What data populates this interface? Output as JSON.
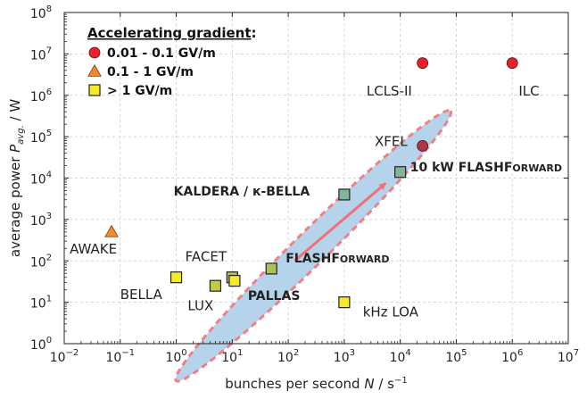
{
  "chart_data": {
    "type": "scatter",
    "x_scale": "log",
    "y_scale": "log",
    "xlim": [
      0.01,
      10000000
    ],
    "ylim": [
      1,
      100000000
    ],
    "grid": true,
    "xlabel_main": "bunches per second ",
    "xlabel_var": "N",
    "xlabel_unit": " / s",
    "xlabel_unit_sup": "−1",
    "ylabel_main": "average power ",
    "ylabel_var": "P",
    "ylabel_sub": "avg.",
    "ylabel_unit": " / W",
    "x_ticks": [
      {
        "value": 0.01,
        "base": "10",
        "exp": "−2"
      },
      {
        "value": 0.1,
        "base": "10",
        "exp": "−1"
      },
      {
        "value": 1,
        "base": "10",
        "exp": "0"
      },
      {
        "value": 10,
        "base": "10",
        "exp": "1"
      },
      {
        "value": 100,
        "base": "10",
        "exp": "2"
      },
      {
        "value": 1000,
        "base": "10",
        "exp": "3"
      },
      {
        "value": 10000,
        "base": "10",
        "exp": "4"
      },
      {
        "value": 100000,
        "base": "10",
        "exp": "5"
      },
      {
        "value": 1000000,
        "base": "10",
        "exp": "6"
      },
      {
        "value": 10000000,
        "base": "10",
        "exp": "7"
      }
    ],
    "y_ticks": [
      {
        "value": 1,
        "base": "10",
        "exp": "0"
      },
      {
        "value": 10,
        "base": "10",
        "exp": "1"
      },
      {
        "value": 100,
        "base": "10",
        "exp": "2"
      },
      {
        "value": 1000,
        "base": "10",
        "exp": "3"
      },
      {
        "value": 10000,
        "base": "10",
        "exp": "4"
      },
      {
        "value": 100000,
        "base": "10",
        "exp": "5"
      },
      {
        "value": 1000000,
        "base": "10",
        "exp": "6"
      },
      {
        "value": 10000000,
        "base": "10",
        "exp": "7"
      },
      {
        "value": 100000000,
        "base": "10",
        "exp": "8"
      }
    ],
    "legend": {
      "placement": "top-left",
      "title": "Accelerating gradient",
      "title_suffix": ":",
      "entries": [
        {
          "label": "0.01 - 0.1 GV/m",
          "marker": "circle",
          "color": "#e8202a"
        },
        {
          "label": "0.1 - 1 GV/m",
          "marker": "triangle",
          "color": "#f08a30"
        },
        {
          "label": "> 1 GV/m",
          "marker": "square",
          "color": "#f7ea2a"
        }
      ]
    },
    "points": [
      {
        "label": "LCLS-II",
        "x": 25000,
        "y": 6000000,
        "marker": "circle",
        "color": "#e8202a"
      },
      {
        "label": "ILC",
        "x": 1000000,
        "y": 6000000,
        "marker": "circle",
        "color": "#e8202a"
      },
      {
        "label": "XFEL",
        "x": 25000,
        "y": 60000,
        "marker": "circle",
        "color": "#a83a48"
      },
      {
        "label": "AWAKE",
        "x": 0.07,
        "y": 500,
        "marker": "triangle",
        "color": "#f08a30"
      },
      {
        "label": "BELLA",
        "x": 1,
        "y": 40,
        "marker": "square",
        "color": "#f7ea2a"
      },
      {
        "label": "FACET",
        "x": 10,
        "y": 40,
        "marker": "square",
        "color": "#b9c24a"
      },
      {
        "label": "LUX",
        "x": 5,
        "y": 25,
        "marker": "square",
        "color": "#c3cb44"
      },
      {
        "label": "PALLAS",
        "x": 11,
        "y": 33,
        "marker": "square",
        "color": "#f7ea2a"
      },
      {
        "label": "FLASHForward",
        "x": 50,
        "y": 65,
        "marker": "square",
        "color": "#a8c25c"
      },
      {
        "label": "kHz LOA",
        "x": 1000,
        "y": 10,
        "marker": "square",
        "color": "#f7ea2a"
      },
      {
        "label": "KALDERA / к-BELLA",
        "x": 1000,
        "y": 4000,
        "marker": "square",
        "color": "#82b49a"
      },
      {
        "label": "10 kW FLASHForward",
        "x": 10000,
        "y": 14000,
        "marker": "square",
        "color": "#82b49a"
      }
    ],
    "annotations": [
      {
        "id": "lcls",
        "text": "LCLS-II",
        "x": 2500,
        "y": 1000000
      },
      {
        "id": "ilc",
        "text": "ILC",
        "x": 1300000,
        "y": 1000000
      },
      {
        "id": "xfel",
        "text": "XFEL",
        "x": 3500,
        "y": 60000
      },
      {
        "id": "awake",
        "text": "AWAKE",
        "x": 0.0125,
        "y": 150
      },
      {
        "id": "bella",
        "text": "BELLA",
        "x": 0.1,
        "y": 12
      },
      {
        "id": "facet",
        "text": "FACET",
        "x": 1.45,
        "y": 100
      },
      {
        "id": "lux",
        "text": "LUX",
        "x": 1.6,
        "y": 6.5
      },
      {
        "id": "kaldera",
        "text": "KALDERA / к-BELLA",
        "x": 0.9,
        "y": 3800,
        "bold": true
      },
      {
        "id": "kloa",
        "text": "kHz LOA",
        "x": 2150,
        "y": 4.5
      }
    ],
    "rich_annotations": [
      {
        "id": "pallas",
        "x": 19,
        "y": 11.5,
        "bold": true,
        "parts": [
          {
            "text": "PALLAS",
            "small": false
          }
        ]
      },
      {
        "id": "flash",
        "x": 90,
        "y": 92,
        "bold": true,
        "parts": [
          {
            "text": "FLASHF",
            "small": false
          },
          {
            "text": "ORWARD",
            "small": true
          }
        ]
      },
      {
        "id": "flash10",
        "x": 15000,
        "y": 14500,
        "bold": true,
        "parts": [
          {
            "text": "10 kW FLASHF",
            "small": false
          },
          {
            "text": "ORWARD",
            "small": true
          }
        ]
      }
    ],
    "region": {
      "center": {
        "x": 280,
        "y": 230
      },
      "semi_major_decades": 2.45,
      "semi_minor_decades": 0.4,
      "angle_slope": 1.33,
      "fill": "#a8cce8",
      "stroke": "#f07f86"
    },
    "trend_arrow": {
      "from": {
        "x": 130,
        "y": 100
      },
      "to": {
        "x": 5500,
        "y": 7500
      },
      "color": "#f06f78"
    }
  }
}
